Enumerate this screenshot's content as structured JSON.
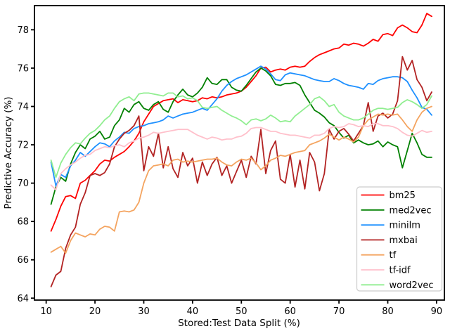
{
  "figure": {
    "background": "#ffffff",
    "axis_color": "#000000",
    "legend_border_color": "#cccccc"
  },
  "chart_data": {
    "type": "line",
    "title": "",
    "xlabel": "Stored:Test Data Split (%)",
    "ylabel": "Predictive Accuracy (%)",
    "xlim": [
      7.6,
      91.6
    ],
    "ylim": [
      63.9,
      79.26
    ],
    "x_ticks": [
      10,
      20,
      30,
      40,
      50,
      60,
      70,
      80,
      90
    ],
    "y_ticks": [
      64,
      66,
      68,
      70,
      72,
      74,
      76,
      78
    ],
    "grid": false,
    "legend_position": "lower right",
    "x": [
      11,
      12,
      13,
      14,
      15,
      16,
      17,
      18,
      19,
      20,
      21,
      22,
      23,
      24,
      25,
      26,
      27,
      28,
      29,
      30,
      31,
      32,
      33,
      34,
      35,
      36,
      37,
      38,
      39,
      40,
      41,
      42,
      43,
      44,
      45,
      46,
      47,
      48,
      49,
      50,
      51,
      52,
      53,
      54,
      55,
      56,
      57,
      58,
      59,
      60,
      61,
      62,
      63,
      64,
      65,
      66,
      67,
      68,
      69,
      70,
      71,
      72,
      73,
      74,
      75,
      76,
      77,
      78,
      79,
      80,
      81,
      82,
      83,
      84,
      85,
      86,
      87,
      88,
      89
    ],
    "series": [
      {
        "name": "bm25",
        "color": "#ff0000",
        "values": [
          67.5,
          68.1,
          68.8,
          69.3,
          69.35,
          69.2,
          70.0,
          70.15,
          70.4,
          70.65,
          71.0,
          71.2,
          71.15,
          71.35,
          71.5,
          71.65,
          71.9,
          72.2,
          72.6,
          73.2,
          73.6,
          74.0,
          74.15,
          74.3,
          74.35,
          74.4,
          74.2,
          74.35,
          74.3,
          74.25,
          74.3,
          74.45,
          74.4,
          74.5,
          74.45,
          74.5,
          74.6,
          74.65,
          74.7,
          74.8,
          75.0,
          75.3,
          75.6,
          76.0,
          76.05,
          75.8,
          75.9,
          75.95,
          75.9,
          76.05,
          76.1,
          76.05,
          76.1,
          76.35,
          76.55,
          76.7,
          76.8,
          76.9,
          77.0,
          77.05,
          77.25,
          77.2,
          77.3,
          77.25,
          77.15,
          77.3,
          77.5,
          77.4,
          77.75,
          77.8,
          77.7,
          78.1,
          78.25,
          78.1,
          77.9,
          77.85,
          78.25,
          78.85,
          78.7
        ]
      },
      {
        "name": "med2vec",
        "color": "#008000",
        "values": [
          68.9,
          69.8,
          70.3,
          70.1,
          71.0,
          71.6,
          72.0,
          71.8,
          72.3,
          72.45,
          72.7,
          72.3,
          72.4,
          73.0,
          73.3,
          73.9,
          73.7,
          74.1,
          74.25,
          73.9,
          73.8,
          74.1,
          74.25,
          73.85,
          73.7,
          74.25,
          74.6,
          74.9,
          74.6,
          74.5,
          74.7,
          75.0,
          75.5,
          75.2,
          75.15,
          75.4,
          75.4,
          75.0,
          74.85,
          74.8,
          75.1,
          75.45,
          75.8,
          76.0,
          75.85,
          75.6,
          75.15,
          75.1,
          75.2,
          75.2,
          75.25,
          75.1,
          74.6,
          74.2,
          73.8,
          73.65,
          73.45,
          73.15,
          73.0,
          72.65,
          72.35,
          72.5,
          72.1,
          72.25,
          72.1,
          72.0,
          72.05,
          72.2,
          71.9,
          72.15,
          72.0,
          71.9,
          70.8,
          71.7,
          72.6,
          72.1,
          71.5,
          71.35,
          71.35
        ]
      },
      {
        "name": "minilm",
        "color": "#1e90ff",
        "values": [
          71.1,
          69.85,
          70.45,
          70.3,
          70.9,
          71.2,
          71.6,
          71.4,
          71.65,
          71.9,
          72.1,
          72.05,
          71.9,
          72.2,
          72.4,
          72.65,
          72.6,
          72.85,
          72.95,
          73.0,
          73.1,
          73.15,
          73.2,
          73.3,
          73.5,
          73.4,
          73.5,
          73.6,
          73.65,
          73.7,
          73.8,
          73.9,
          73.8,
          74.1,
          74.4,
          74.8,
          75.1,
          75.3,
          75.45,
          75.55,
          75.65,
          75.8,
          75.95,
          76.1,
          75.95,
          75.7,
          75.4,
          75.35,
          75.65,
          75.75,
          75.7,
          75.65,
          75.6,
          75.5,
          75.4,
          75.35,
          75.3,
          75.3,
          75.45,
          75.35,
          75.2,
          75.1,
          75.05,
          75.0,
          74.9,
          75.2,
          75.15,
          75.35,
          75.45,
          75.5,
          75.55,
          75.55,
          75.5,
          75.3,
          74.85,
          74.45,
          73.95,
          73.85,
          73.55
        ]
      },
      {
        "name": "mxbai",
        "color": "#b22222",
        "values": [
          64.6,
          65.2,
          65.4,
          66.6,
          67.3,
          67.7,
          68.9,
          69.5,
          70.4,
          70.5,
          70.4,
          70.55,
          71.0,
          71.9,
          72.3,
          72.6,
          72.75,
          73.0,
          73.5,
          70.65,
          71.9,
          71.4,
          72.6,
          70.8,
          71.9,
          70.75,
          70.3,
          71.6,
          70.9,
          71.3,
          70.0,
          71.1,
          70.4,
          71.0,
          71.35,
          70.4,
          70.9,
          70.0,
          70.6,
          71.2,
          70.3,
          71.4,
          71.0,
          72.8,
          70.5,
          71.7,
          72.2,
          70.2,
          70.0,
          71.5,
          69.8,
          71.2,
          69.7,
          71.6,
          71.1,
          69.6,
          70.5,
          72.8,
          72.3,
          72.7,
          72.85,
          72.55,
          72.2,
          72.6,
          73.0,
          74.2,
          72.7,
          73.5,
          73.65,
          73.4,
          73.6,
          74.3,
          76.6,
          75.9,
          76.4,
          75.4,
          75.0,
          74.3,
          74.75
        ]
      },
      {
        "name": "tf",
        "color": "#f4a460",
        "values": [
          66.4,
          66.55,
          66.7,
          66.35,
          67.0,
          67.4,
          67.3,
          67.2,
          67.35,
          67.3,
          67.6,
          67.75,
          67.7,
          67.5,
          68.5,
          68.55,
          68.5,
          68.6,
          69.0,
          70.0,
          70.65,
          70.9,
          70.95,
          71.0,
          70.9,
          71.2,
          71.25,
          71.1,
          71.15,
          71.1,
          71.15,
          71.2,
          71.25,
          71.25,
          71.3,
          71.1,
          70.95,
          70.9,
          71.1,
          71.25,
          71.2,
          71.3,
          71.05,
          70.7,
          70.9,
          71.2,
          71.3,
          71.45,
          71.4,
          71.5,
          71.6,
          71.65,
          71.7,
          72.0,
          72.1,
          72.2,
          72.35,
          72.55,
          72.4,
          72.25,
          72.4,
          72.3,
          72.15,
          72.4,
          73.0,
          73.3,
          73.45,
          73.6,
          73.55,
          73.6,
          73.55,
          73.6,
          73.3,
          72.95,
          72.7,
          73.3,
          73.7,
          73.9,
          74.0
        ]
      },
      {
        "name": "tf-idf",
        "color": "#ffc0cb",
        "values": [
          69.9,
          69.65,
          70.5,
          70.75,
          70.95,
          71.1,
          71.3,
          71.45,
          71.5,
          71.7,
          71.8,
          71.9,
          71.85,
          71.95,
          72.0,
          71.9,
          72.1,
          72.2,
          72.35,
          72.4,
          72.5,
          72.65,
          72.6,
          72.65,
          72.7,
          72.75,
          72.8,
          72.8,
          72.8,
          72.65,
          72.5,
          72.4,
          72.3,
          72.4,
          72.35,
          72.25,
          72.3,
          72.3,
          72.4,
          72.45,
          72.6,
          72.85,
          72.9,
          72.9,
          72.8,
          72.7,
          72.7,
          72.6,
          72.55,
          72.5,
          72.5,
          72.45,
          72.4,
          72.35,
          72.5,
          72.5,
          72.6,
          72.85,
          72.95,
          72.9,
          72.95,
          73.1,
          73.05,
          72.95,
          73.0,
          72.95,
          73.1,
          73.1,
          73.0,
          73.0,
          72.95,
          72.85,
          72.65,
          72.5,
          72.45,
          72.6,
          72.75,
          72.65,
          72.7
        ]
      },
      {
        "name": "word2vec",
        "color": "#90ee90",
        "values": [
          71.2,
          70.3,
          71.05,
          71.5,
          71.85,
          72.1,
          72.05,
          72.35,
          72.6,
          72.75,
          73.0,
          73.3,
          73.5,
          73.9,
          74.25,
          74.4,
          74.5,
          74.3,
          74.65,
          74.7,
          74.7,
          74.65,
          74.6,
          74.55,
          74.7,
          74.7,
          74.5,
          74.55,
          74.4,
          74.45,
          74.3,
          73.95,
          73.9,
          73.95,
          74.0,
          73.8,
          73.65,
          73.5,
          73.4,
          73.25,
          73.05,
          73.3,
          73.35,
          73.25,
          73.35,
          73.55,
          73.4,
          73.2,
          73.25,
          73.2,
          73.5,
          73.7,
          73.9,
          74.1,
          74.4,
          74.5,
          74.3,
          74.0,
          74.1,
          73.7,
          73.5,
          73.4,
          73.3,
          73.3,
          73.4,
          73.6,
          73.8,
          73.9,
          73.9,
          73.85,
          73.9,
          73.95,
          74.2,
          74.35,
          74.25,
          74.1,
          73.9,
          74.1,
          74.55
        ]
      }
    ]
  }
}
